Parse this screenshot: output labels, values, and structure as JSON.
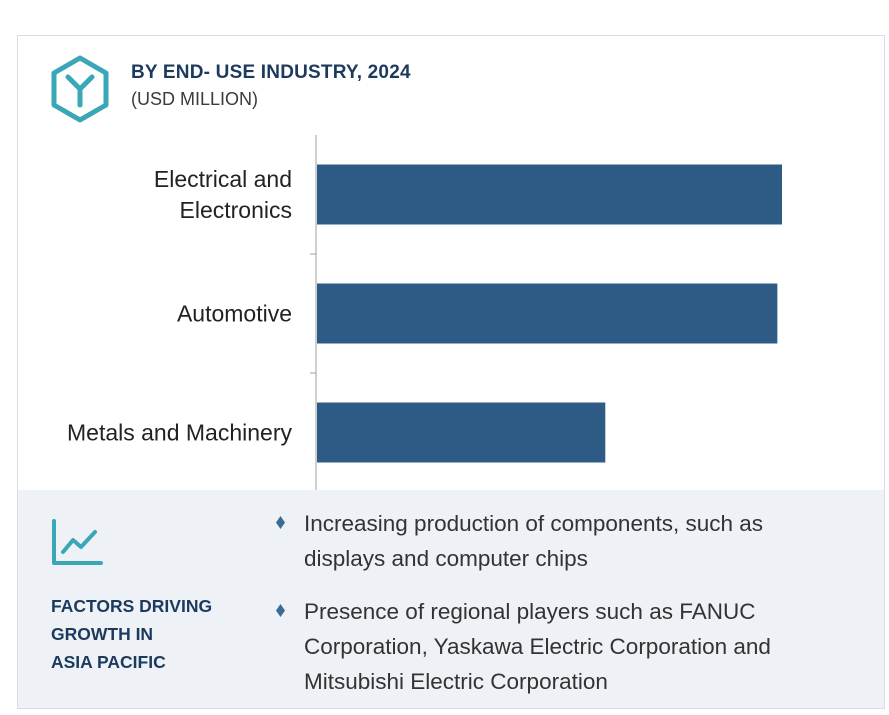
{
  "header": {
    "title": "BY END- USE INDUSTRY, 2024",
    "subtitle": "(USD MILLION)",
    "logo_icon": "y-hexagon-icon"
  },
  "colors": {
    "bar": "#2e5b86",
    "title": "#1c3a5e",
    "accent": "#3aa7b7",
    "panel_bg": "#eef1f5"
  },
  "chart_data": {
    "type": "bar",
    "orientation": "horizontal",
    "categories": [
      [
        "Electrical and",
        "Electronics"
      ],
      [
        "Automotive"
      ],
      [
        "Metals and Machinery"
      ]
    ],
    "values": [
      100,
      99,
      62
    ],
    "title": "BY END- USE INDUSTRY, 2024",
    "subtitle": "(USD MILLION)",
    "xlabel": "",
    "ylabel": "",
    "xlim": [
      0,
      100
    ],
    "grid": false,
    "value_note": "relative bar lengths; no numeric axis shown"
  },
  "factors": {
    "icon": "line-chart-icon",
    "heading": [
      "FACTORS DRIVING",
      "GROWTH IN",
      "ASIA PACIFIC"
    ],
    "bullets": [
      {
        "lines": [
          "Increasing production of components, such as",
          "displays and computer chips"
        ]
      },
      {
        "lines": [
          "Presence of regional players such as FANUC",
          "Corporation, Yaskawa Electric Corporation and",
          "Mitsubishi Electric Corporation"
        ]
      }
    ]
  }
}
